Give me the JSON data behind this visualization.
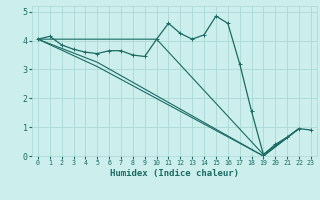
{
  "xlabel": "Humidex (Indice chaleur)",
  "bg_color": "#cceeed",
  "grid_color": "#aad8d6",
  "line_color": "#1a6b62",
  "xlim": [
    -0.5,
    23.5
  ],
  "ylim": [
    0,
    5.2
  ],
  "xticks": [
    0,
    1,
    2,
    3,
    4,
    5,
    6,
    7,
    8,
    9,
    10,
    11,
    12,
    13,
    14,
    15,
    16,
    17,
    18,
    19,
    20,
    21,
    22,
    23
  ],
  "yticks": [
    0,
    1,
    2,
    3,
    4,
    5
  ],
  "line1": {
    "x": [
      0,
      1,
      2,
      3,
      4,
      5,
      6,
      7,
      8,
      9,
      10,
      11,
      12,
      13,
      14,
      15,
      16,
      17,
      18,
      19,
      20,
      21,
      22,
      23
    ],
    "y": [
      4.05,
      4.15,
      3.85,
      3.7,
      3.6,
      3.55,
      3.65,
      3.65,
      3.5,
      3.45,
      4.05,
      4.6,
      4.25,
      4.05,
      4.2,
      4.85,
      4.6,
      3.2,
      1.55,
      0.05,
      0.4,
      0.65,
      0.95,
      0.9
    ]
  },
  "line2": {
    "x": [
      0,
      5,
      19,
      22
    ],
    "y": [
      4.05,
      3.1,
      0.0,
      0.95
    ]
  },
  "line3": {
    "x": [
      0,
      5,
      19,
      22
    ],
    "y": [
      4.05,
      3.25,
      0.0,
      0.95
    ]
  },
  "line4": {
    "x": [
      0,
      10,
      19,
      22
    ],
    "y": [
      4.05,
      4.05,
      0.05,
      0.95
    ]
  }
}
